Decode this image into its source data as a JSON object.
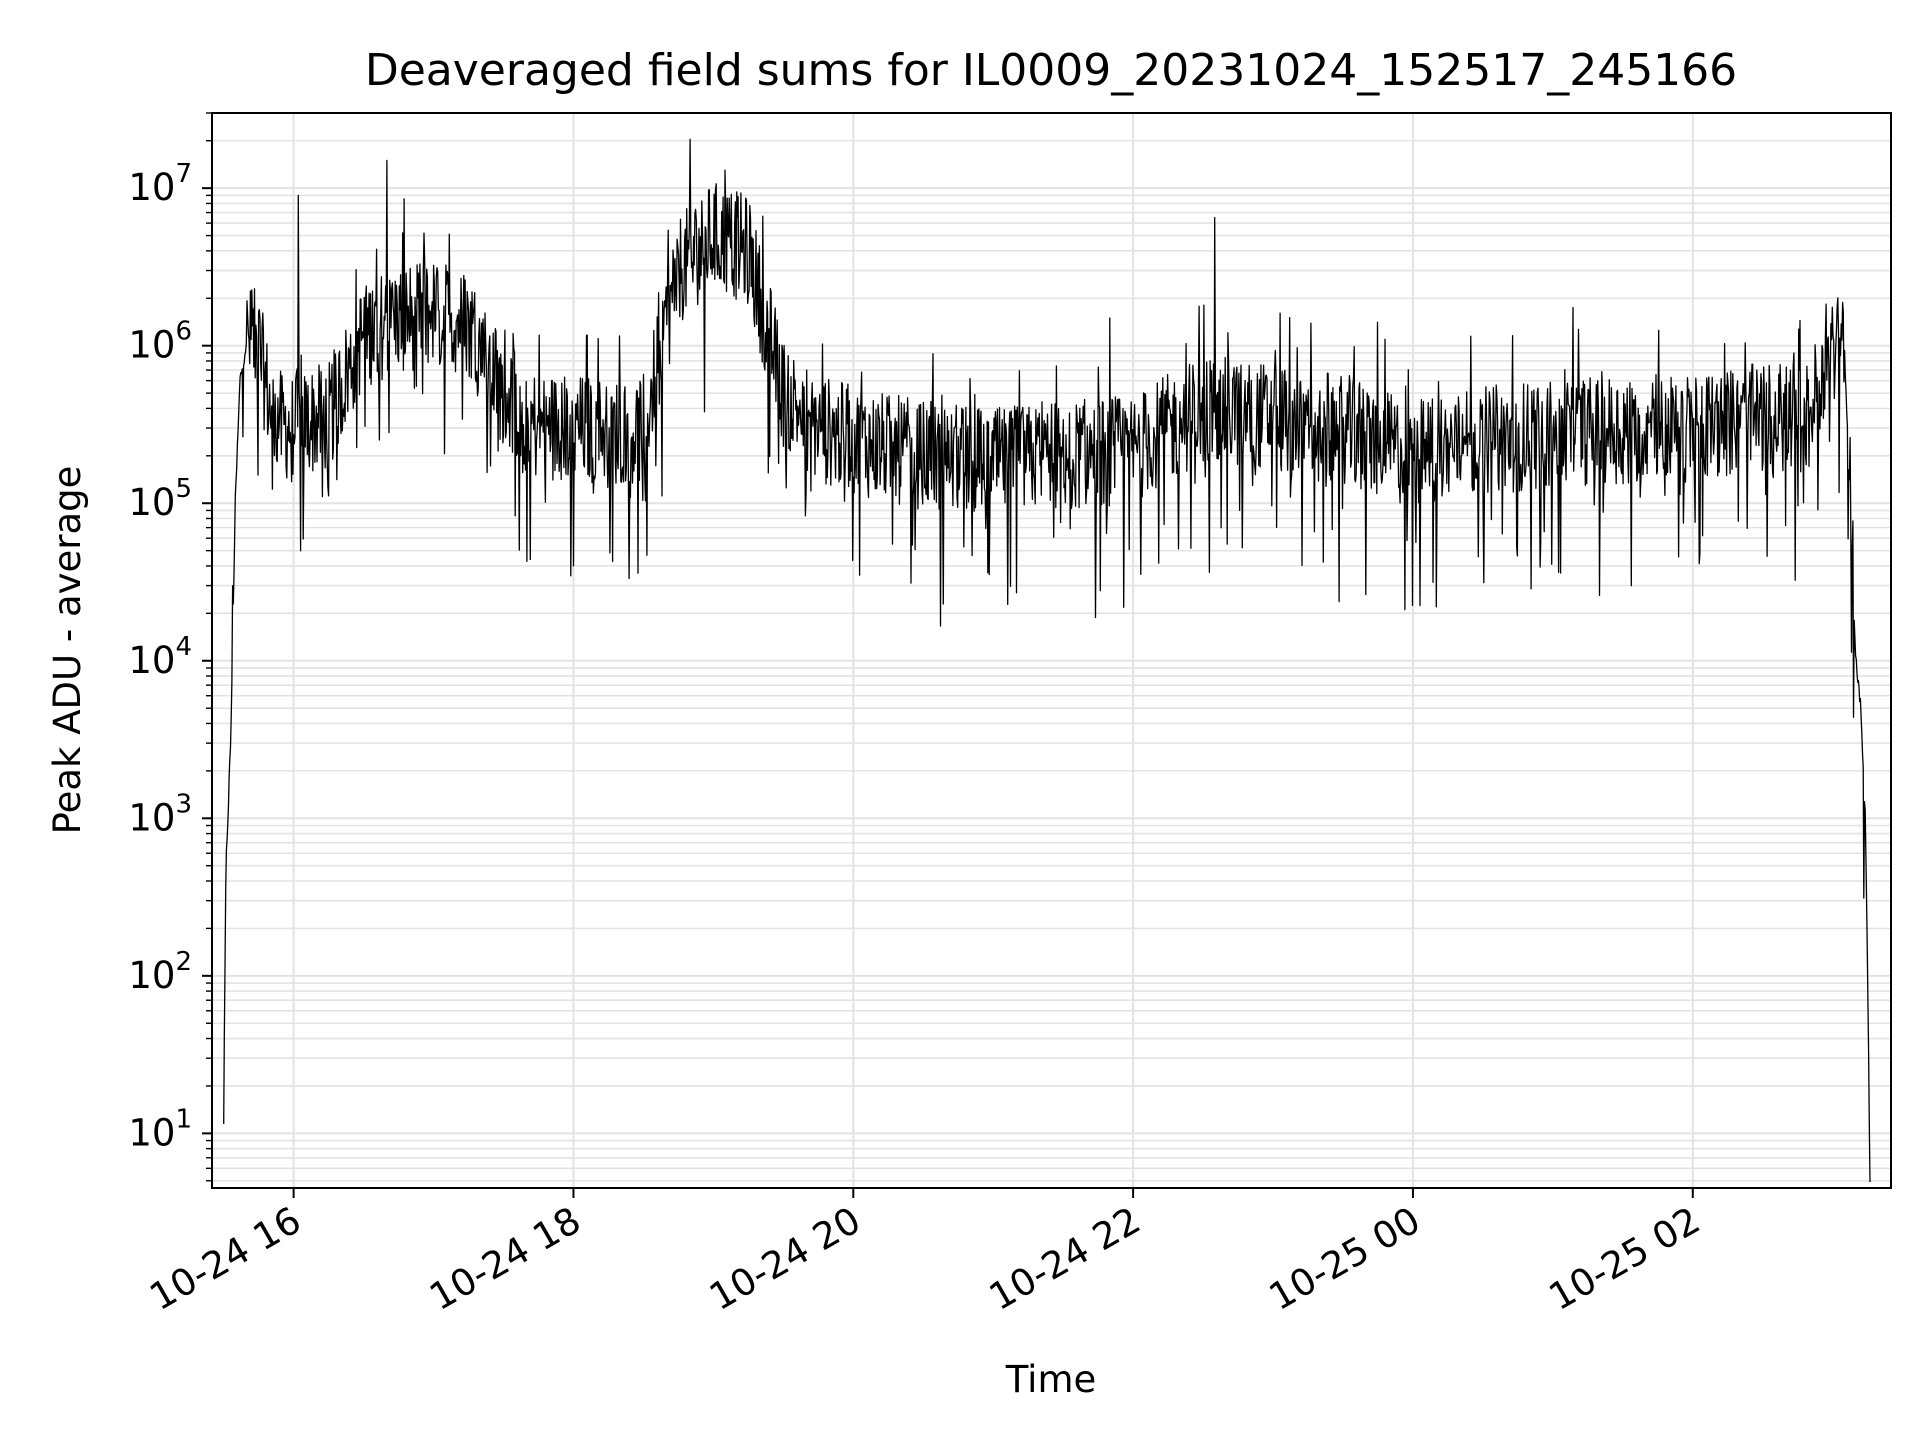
{
  "chart_data": {
    "type": "line",
    "title": "Deaveraged field sums for IL0009_20231024_152517_245166",
    "xlabel": "Time",
    "ylabel": "Peak ADU - average",
    "yscale": "log",
    "ylim": [
      4.5,
      30000000
    ],
    "xlim": [
      "2023-10-24 15:25",
      "2023-10-25 03:25"
    ],
    "grid": true,
    "x_tick_labels": [
      "10-24 16",
      "10-24 18",
      "10-24 20",
      "10-24 22",
      "10-25 00",
      "10-25 02"
    ],
    "x_tick_times": [
      "2023-10-24 16:00",
      "2023-10-24 18:00",
      "2023-10-24 20:00",
      "2023-10-24 22:00",
      "2023-10-25 00:00",
      "2023-10-25 02:00"
    ],
    "y_tick_labels": [
      {
        "base": "10",
        "exp": "1"
      },
      {
        "base": "10",
        "exp": "2"
      },
      {
        "base": "10",
        "exp": "3"
      },
      {
        "base": "10",
        "exp": "4"
      },
      {
        "base": "10",
        "exp": "5"
      },
      {
        "base": "10",
        "exp": "6"
      },
      {
        "base": "10",
        "exp": "7"
      }
    ],
    "y_tick_values": [
      10,
      100,
      1000,
      10000,
      100000,
      1000000,
      10000000
    ],
    "series": [
      {
        "color": "#000000",
        "x": [
          "2023-10-24 15:30",
          "2023-10-24 15:31",
          "2023-10-24 15:33",
          "2023-10-24 15:35",
          "2023-10-24 15:37",
          "2023-10-24 15:40",
          "2023-10-24 15:45",
          "2023-10-24 15:50",
          "2023-10-24 15:55",
          "2023-10-24 16:00",
          "2023-10-24 16:15",
          "2023-10-24 16:30",
          "2023-10-24 16:45",
          "2023-10-24 17:00",
          "2023-10-24 17:15",
          "2023-10-24 17:30",
          "2023-10-24 17:45",
          "2023-10-24 18:00",
          "2023-10-24 18:15",
          "2023-10-24 18:30",
          "2023-10-24 18:45",
          "2023-10-24 19:00",
          "2023-10-24 19:15",
          "2023-10-24 19:30",
          "2023-10-24 19:45",
          "2023-10-24 20:00",
          "2023-10-24 20:30",
          "2023-10-24 21:00",
          "2023-10-24 21:30",
          "2023-10-24 22:00",
          "2023-10-24 22:30",
          "2023-10-24 23:00",
          "2023-10-24 23:30",
          "2023-10-25 00:00",
          "2023-10-25 00:30",
          "2023-10-25 01:00",
          "2023-10-25 01:30",
          "2023-10-25 02:00",
          "2023-10-25 02:30",
          "2023-10-25 02:50",
          "2023-10-25 03:00",
          "2023-10-25 03:05",
          "2023-10-25 03:10",
          "2023-10-25 03:12",
          "2023-10-25 03:14",
          "2023-10-25 03:15",
          "2023-10-25 03:16"
        ],
        "values": [
          12,
          500,
          3000,
          100000,
          600000,
          1100000,
          1000000,
          400000,
          300000,
          320000,
          350000,
          1200000,
          1500000,
          1600000,
          1400000,
          500000,
          300000,
          300000,
          280000,
          300000,
          3000000,
          5000000,
          4000000,
          500000,
          300000,
          250000,
          200000,
          180000,
          200000,
          220000,
          400000,
          350000,
          300000,
          200000,
          250000,
          280000,
          300000,
          300000,
          350000,
          350000,
          1300000,
          1000000,
          10000,
          5000,
          1000,
          100,
          5
        ],
        "spikes": [
          {
            "x": "2023-10-24 16:02",
            "value": 9000000
          },
          {
            "x": "2023-10-24 16:40",
            "value": 15000000
          },
          {
            "x": "2023-10-24 19:05",
            "value": 13000000
          },
          {
            "x": "2023-10-24 21:50",
            "value": 1500000
          },
          {
            "x": "2023-10-24 22:35",
            "value": 6500000
          }
        ],
        "dips": [
          {
            "x": "2023-10-24 16:03",
            "value": 50000
          },
          {
            "x": "2023-10-24 18:00",
            "value": 40000
          },
          {
            "x": "2023-10-24 21:10",
            "value": 27000
          },
          {
            "x": "2023-10-25 00:10",
            "value": 22000
          },
          {
            "x": "2023-10-25 01:20",
            "value": 26000
          }
        ]
      }
    ]
  }
}
